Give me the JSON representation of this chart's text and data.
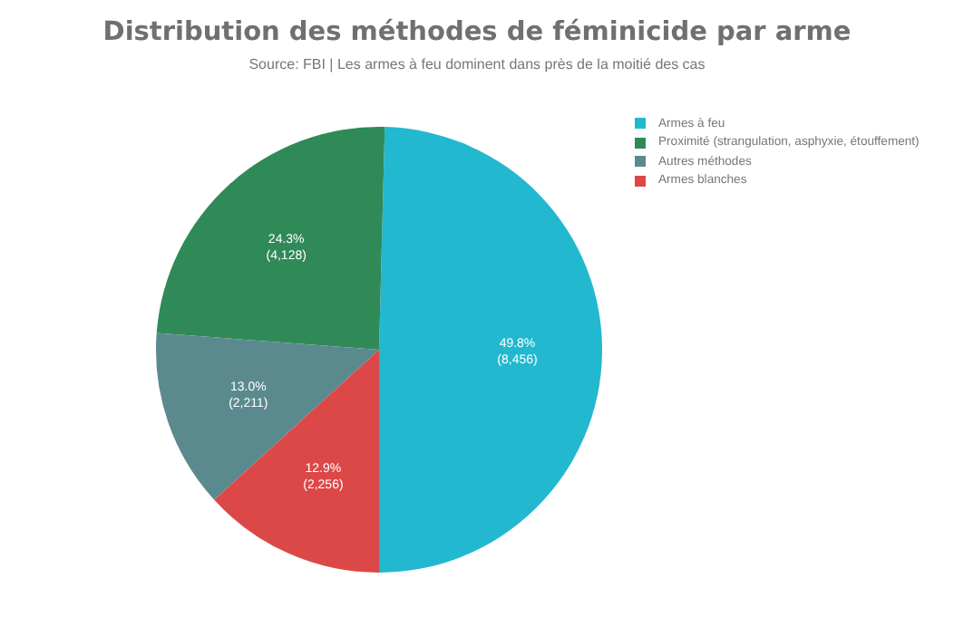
{
  "chart_data": {
    "type": "pie",
    "title": "Distribution des méthodes de féminicide par arme",
    "subtitle": "Source: FBI | Les armes à feu dominent dans près de la moitié des cas",
    "categories": [
      "Armes à feu",
      "Proximité (strangulation, asphyxie, étouffement)",
      "Autres méthodes",
      "Armes blanches"
    ],
    "values": [
      8456,
      4128,
      2211,
      2256
    ],
    "colors": [
      "#22b8cf",
      "#2f8a57",
      "#5b8a8e",
      "#dc4848"
    ],
    "value_labels": [
      "49.8%\n(8,456)",
      "24.3%\n(4,128)",
      "13.0%\n(2,211)",
      "12.9%\n(2,256)"
    ],
    "legend": "top right"
  }
}
